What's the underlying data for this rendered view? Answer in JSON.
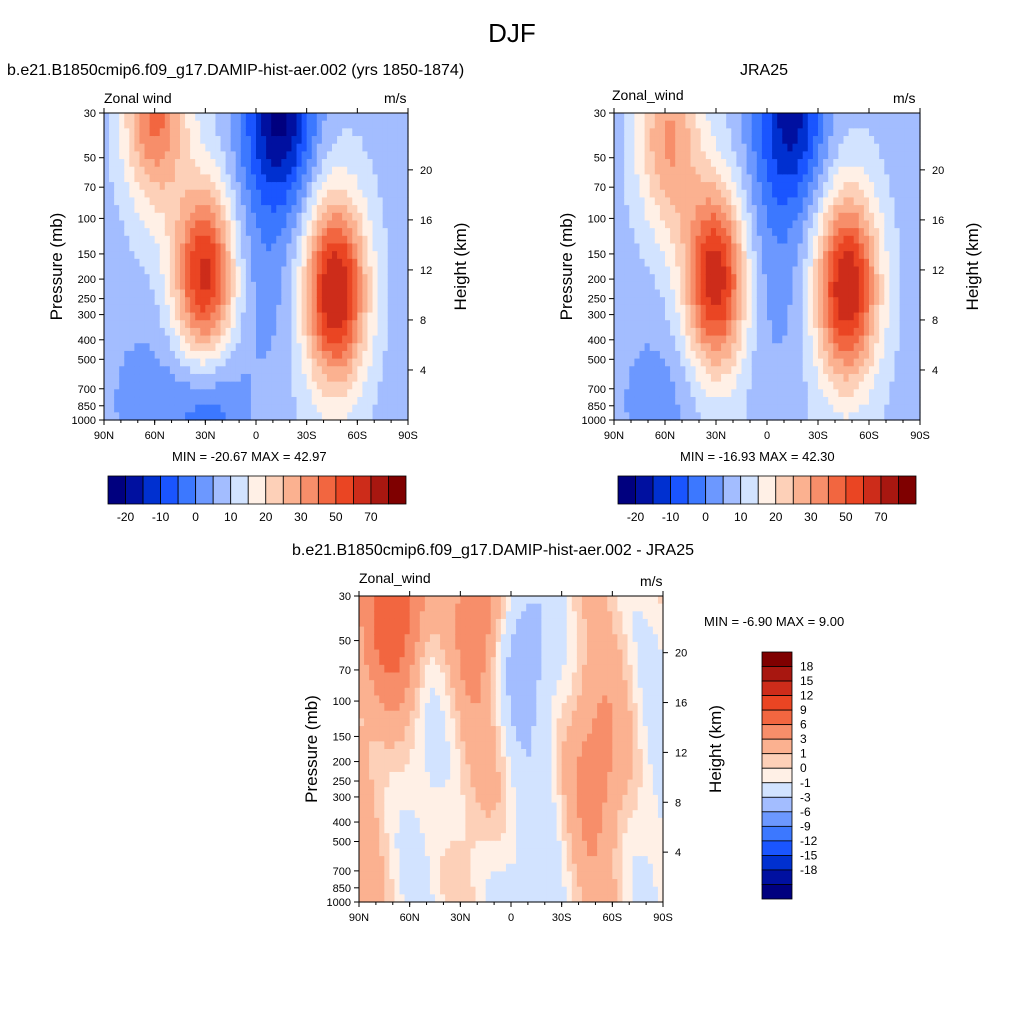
{
  "main_title": "DJF",
  "chart_data": [
    {
      "type": "heatmap",
      "title": "b.e21.B1850cmip6.f09_g17.DAMIP-hist-aer.002 (yrs 1850-1874)",
      "subtitle_left": "Zonal wind",
      "subtitle_right": "m/s",
      "ylabel": "Pressure (mb)",
      "ylabel_right": "Height (km)",
      "x_ticks": [
        "90N",
        "60N",
        "30N",
        "0",
        "30S",
        "60S",
        "90S"
      ],
      "x_range": [
        90,
        -90
      ],
      "y_ticks": [
        30,
        50,
        70,
        100,
        150,
        200,
        250,
        300,
        400,
        500,
        700,
        850,
        1000
      ],
      "y_range": [
        1000,
        30
      ],
      "y_scale": "log",
      "height_ticks": [
        20,
        16,
        12,
        8,
        4
      ],
      "stats": "MIN = -20.67  MAX =  42.97",
      "levels": [
        -25,
        -20,
        -15,
        -10,
        -5,
        0,
        5,
        10,
        15,
        20,
        25,
        30,
        35,
        40,
        50,
        60,
        70
      ],
      "colorbar_labels": [
        "-20",
        "-10",
        "0",
        "10",
        "20",
        "30",
        "50",
        "70"
      ],
      "colorbar_orientation": "horizontal",
      "features": [
        {
          "kind": "jet",
          "lat": -47,
          "p": 230,
          "peak": 43
        },
        {
          "kind": "jet",
          "lat": 30,
          "p": 200,
          "peak": 40
        },
        {
          "kind": "jet",
          "lat": 60,
          "p": 30,
          "peak": 28
        },
        {
          "kind": "easterly",
          "lat": -15,
          "p": 30,
          "min": -21
        },
        {
          "kind": "easterly",
          "lat": 28,
          "p": 900,
          "min": -8
        }
      ]
    },
    {
      "type": "heatmap",
      "title": "JRA25",
      "subtitle_left": "Zonal_wind",
      "subtitle_right": "m/s",
      "ylabel": "Pressure (mb)",
      "ylabel_right": "Height (km)",
      "x_ticks": [
        "90N",
        "60N",
        "30N",
        "0",
        "30S",
        "60S",
        "90S"
      ],
      "x_range": [
        90,
        -90
      ],
      "y_ticks": [
        30,
        50,
        70,
        100,
        150,
        200,
        250,
        300,
        400,
        500,
        700,
        850,
        1000
      ],
      "y_range": [
        1000,
        30
      ],
      "y_scale": "log",
      "height_ticks": [
        20,
        16,
        12,
        8,
        4
      ],
      "stats": "MIN = -16.93  MAX =  42.30",
      "levels": [
        -25,
        -20,
        -15,
        -10,
        -5,
        0,
        5,
        10,
        15,
        20,
        25,
        30,
        35,
        40,
        50,
        60,
        70
      ],
      "colorbar_labels": [
        "-20",
        "-10",
        "0",
        "10",
        "20",
        "30",
        "50",
        "70"
      ],
      "colorbar_orientation": "horizontal",
      "features": [
        {
          "kind": "jet",
          "lat": -47,
          "p": 220,
          "peak": 42
        },
        {
          "kind": "jet",
          "lat": 30,
          "p": 200,
          "peak": 41
        },
        {
          "kind": "jet",
          "lat": 58,
          "p": 40,
          "peak": 22
        },
        {
          "kind": "easterly",
          "lat": -15,
          "p": 30,
          "min": -17
        }
      ]
    },
    {
      "type": "heatmap",
      "title": "b.e21.B1850cmip6.f09_g17.DAMIP-hist-aer.002 - JRA25",
      "subtitle_left": "Zonal_wind",
      "subtitle_right": "m/s",
      "ylabel": "Pressure (mb)",
      "ylabel_right": "Height (km)",
      "x_ticks": [
        "90N",
        "60N",
        "30N",
        "0",
        "30S",
        "60S",
        "90S"
      ],
      "x_range": [
        90,
        -90
      ],
      "y_ticks": [
        30,
        50,
        70,
        100,
        150,
        200,
        250,
        300,
        400,
        500,
        700,
        850,
        1000
      ],
      "y_range": [
        1000,
        30
      ],
      "y_scale": "log",
      "height_ticks": [
        20,
        16,
        12,
        8,
        4
      ],
      "stats": "MIN =  -6.90  MAX =   9.00",
      "levels": [
        -21,
        -18,
        -15,
        -12,
        -9,
        -6,
        -3,
        -1,
        0,
        1,
        3,
        6,
        9,
        12,
        15,
        18,
        21
      ],
      "colorbar_labels": [
        "18",
        "15",
        "12",
        "9",
        "6",
        "3",
        "1",
        "0",
        "-1",
        "-3",
        "-6",
        "-9",
        "-12",
        "-15",
        "-18"
      ],
      "colorbar_orientation": "vertical",
      "features": [
        {
          "kind": "positive",
          "lat": 68,
          "p": 35,
          "peak": 9
        },
        {
          "kind": "positive",
          "lat": 17,
          "p": 35,
          "peak": 5
        },
        {
          "kind": "positive",
          "lat": -50,
          "p": 200,
          "peak": 3
        },
        {
          "kind": "negative",
          "lat": -5,
          "p": 55,
          "peak": -5
        },
        {
          "kind": "negative",
          "lat": 5,
          "p": 850,
          "peak": -2
        }
      ]
    }
  ],
  "colors": {
    "palette": [
      "#00007f",
      "#0010a0",
      "#0030d0",
      "#1a55ff",
      "#3c78ff",
      "#6c98ff",
      "#a3bdff",
      "#d2e3ff",
      "#fff0e6",
      "#fdd0b8",
      "#fbb190",
      "#f78e6a",
      "#f26640",
      "#ea4523",
      "#cd2c1a",
      "#a81710",
      "#7f0000"
    ],
    "missing": "#ffffff",
    "frame": "#000000"
  }
}
